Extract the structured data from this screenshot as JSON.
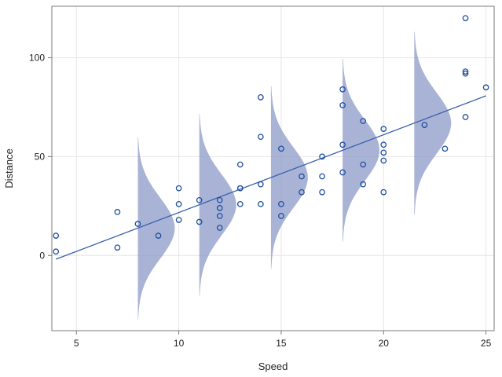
{
  "chart_data": {
    "type": "scatter",
    "title": "",
    "xlabel": "Speed",
    "ylabel": "Distance",
    "xlim": [
      3.8,
      25.4
    ],
    "ylim": [
      -38,
      126
    ],
    "xticks": [
      5,
      10,
      15,
      20,
      25
    ],
    "yticks": [
      0,
      50,
      100
    ],
    "grid": true,
    "colors": {
      "points": "#1f4e9e",
      "line": "#3b5fae",
      "density_fill": "#8c99c8",
      "grid": "#e6e6e6",
      "frame": "#7a7a7a"
    },
    "points": [
      {
        "x": 4,
        "y": 2
      },
      {
        "x": 4,
        "y": 10
      },
      {
        "x": 7,
        "y": 4
      },
      {
        "x": 7,
        "y": 22
      },
      {
        "x": 8,
        "y": 16
      },
      {
        "x": 9,
        "y": 10
      },
      {
        "x": 10,
        "y": 18
      },
      {
        "x": 10,
        "y": 26
      },
      {
        "x": 10,
        "y": 34
      },
      {
        "x": 11,
        "y": 17
      },
      {
        "x": 11,
        "y": 28
      },
      {
        "x": 12,
        "y": 14
      },
      {
        "x": 12,
        "y": 20
      },
      {
        "x": 12,
        "y": 24
      },
      {
        "x": 12,
        "y": 28
      },
      {
        "x": 13,
        "y": 26
      },
      {
        "x": 13,
        "y": 34
      },
      {
        "x": 13,
        "y": 34
      },
      {
        "x": 13,
        "y": 46
      },
      {
        "x": 14,
        "y": 26
      },
      {
        "x": 14,
        "y": 36
      },
      {
        "x": 14,
        "y": 60
      },
      {
        "x": 14,
        "y": 80
      },
      {
        "x": 15,
        "y": 20
      },
      {
        "x": 15,
        "y": 26
      },
      {
        "x": 15,
        "y": 54
      },
      {
        "x": 16,
        "y": 32
      },
      {
        "x": 16,
        "y": 40
      },
      {
        "x": 17,
        "y": 32
      },
      {
        "x": 17,
        "y": 40
      },
      {
        "x": 17,
        "y": 50
      },
      {
        "x": 18,
        "y": 42
      },
      {
        "x": 18,
        "y": 56
      },
      {
        "x": 18,
        "y": 76
      },
      {
        "x": 18,
        "y": 84
      },
      {
        "x": 19,
        "y": 36
      },
      {
        "x": 19,
        "y": 46
      },
      {
        "x": 19,
        "y": 68
      },
      {
        "x": 20,
        "y": 32
      },
      {
        "x": 20,
        "y": 48
      },
      {
        "x": 20,
        "y": 52
      },
      {
        "x": 20,
        "y": 56
      },
      {
        "x": 20,
        "y": 64
      },
      {
        "x": 22,
        "y": 66
      },
      {
        "x": 23,
        "y": 54
      },
      {
        "x": 24,
        "y": 70
      },
      {
        "x": 24,
        "y": 92
      },
      {
        "x": 24,
        "y": 93
      },
      {
        "x": 24,
        "y": 120
      },
      {
        "x": 25,
        "y": 85
      }
    ],
    "regression_line": {
      "x": [
        4,
        25
      ],
      "y": [
        -1.85,
        80.73
      ]
    },
    "densities": [
      {
        "x": 8,
        "mean": 13.8,
        "sd": 15.4
      },
      {
        "x": 11,
        "mean": 25.6,
        "sd": 15.4
      },
      {
        "x": 14.5,
        "mean": 39.4,
        "sd": 15.4
      },
      {
        "x": 18,
        "mean": 53.2,
        "sd": 15.4
      },
      {
        "x": 21.5,
        "mean": 66.9,
        "sd": 15.4
      }
    ],
    "density_width": 1.8
  }
}
